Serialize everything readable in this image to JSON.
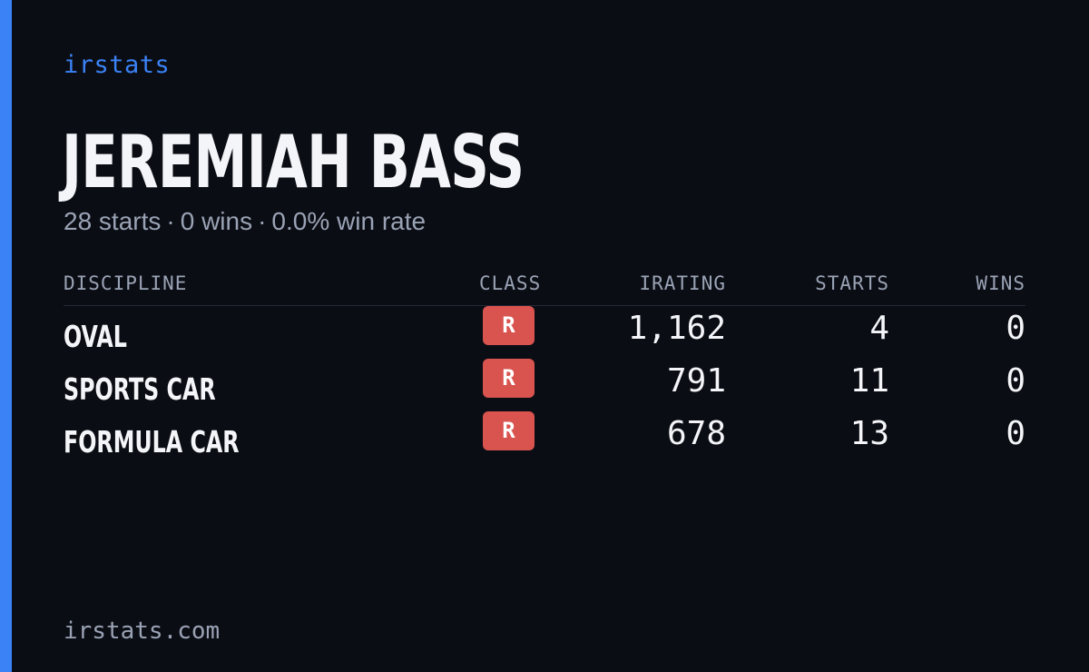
{
  "brand": "irstats",
  "driver": {
    "name": "JEREMIAH BASS",
    "starts": "28 starts",
    "wins": "0 wins",
    "win_rate": "0.0% win rate",
    "separator": "·"
  },
  "table": {
    "headers": {
      "discipline": "DISCIPLINE",
      "class": "CLASS",
      "irating": "IRATING",
      "starts": "STARTS",
      "wins": "WINS"
    },
    "rows": [
      {
        "discipline": "OVAL",
        "class": "R",
        "irating": "1,162",
        "starts": "4",
        "wins": "0"
      },
      {
        "discipline": "SPORTS CAR",
        "class": "R",
        "irating": "791",
        "starts": "11",
        "wins": "0"
      },
      {
        "discipline": "FORMULA CAR",
        "class": "R",
        "irating": "678",
        "starts": "13",
        "wins": "0"
      }
    ]
  },
  "footer": "irstats.com",
  "colors": {
    "background": "#0b0d14",
    "accent": "#3b82f6",
    "class_r_badge": "#d9534f",
    "text_primary": "#f4f5f8",
    "text_muted": "#9aa3b5"
  }
}
